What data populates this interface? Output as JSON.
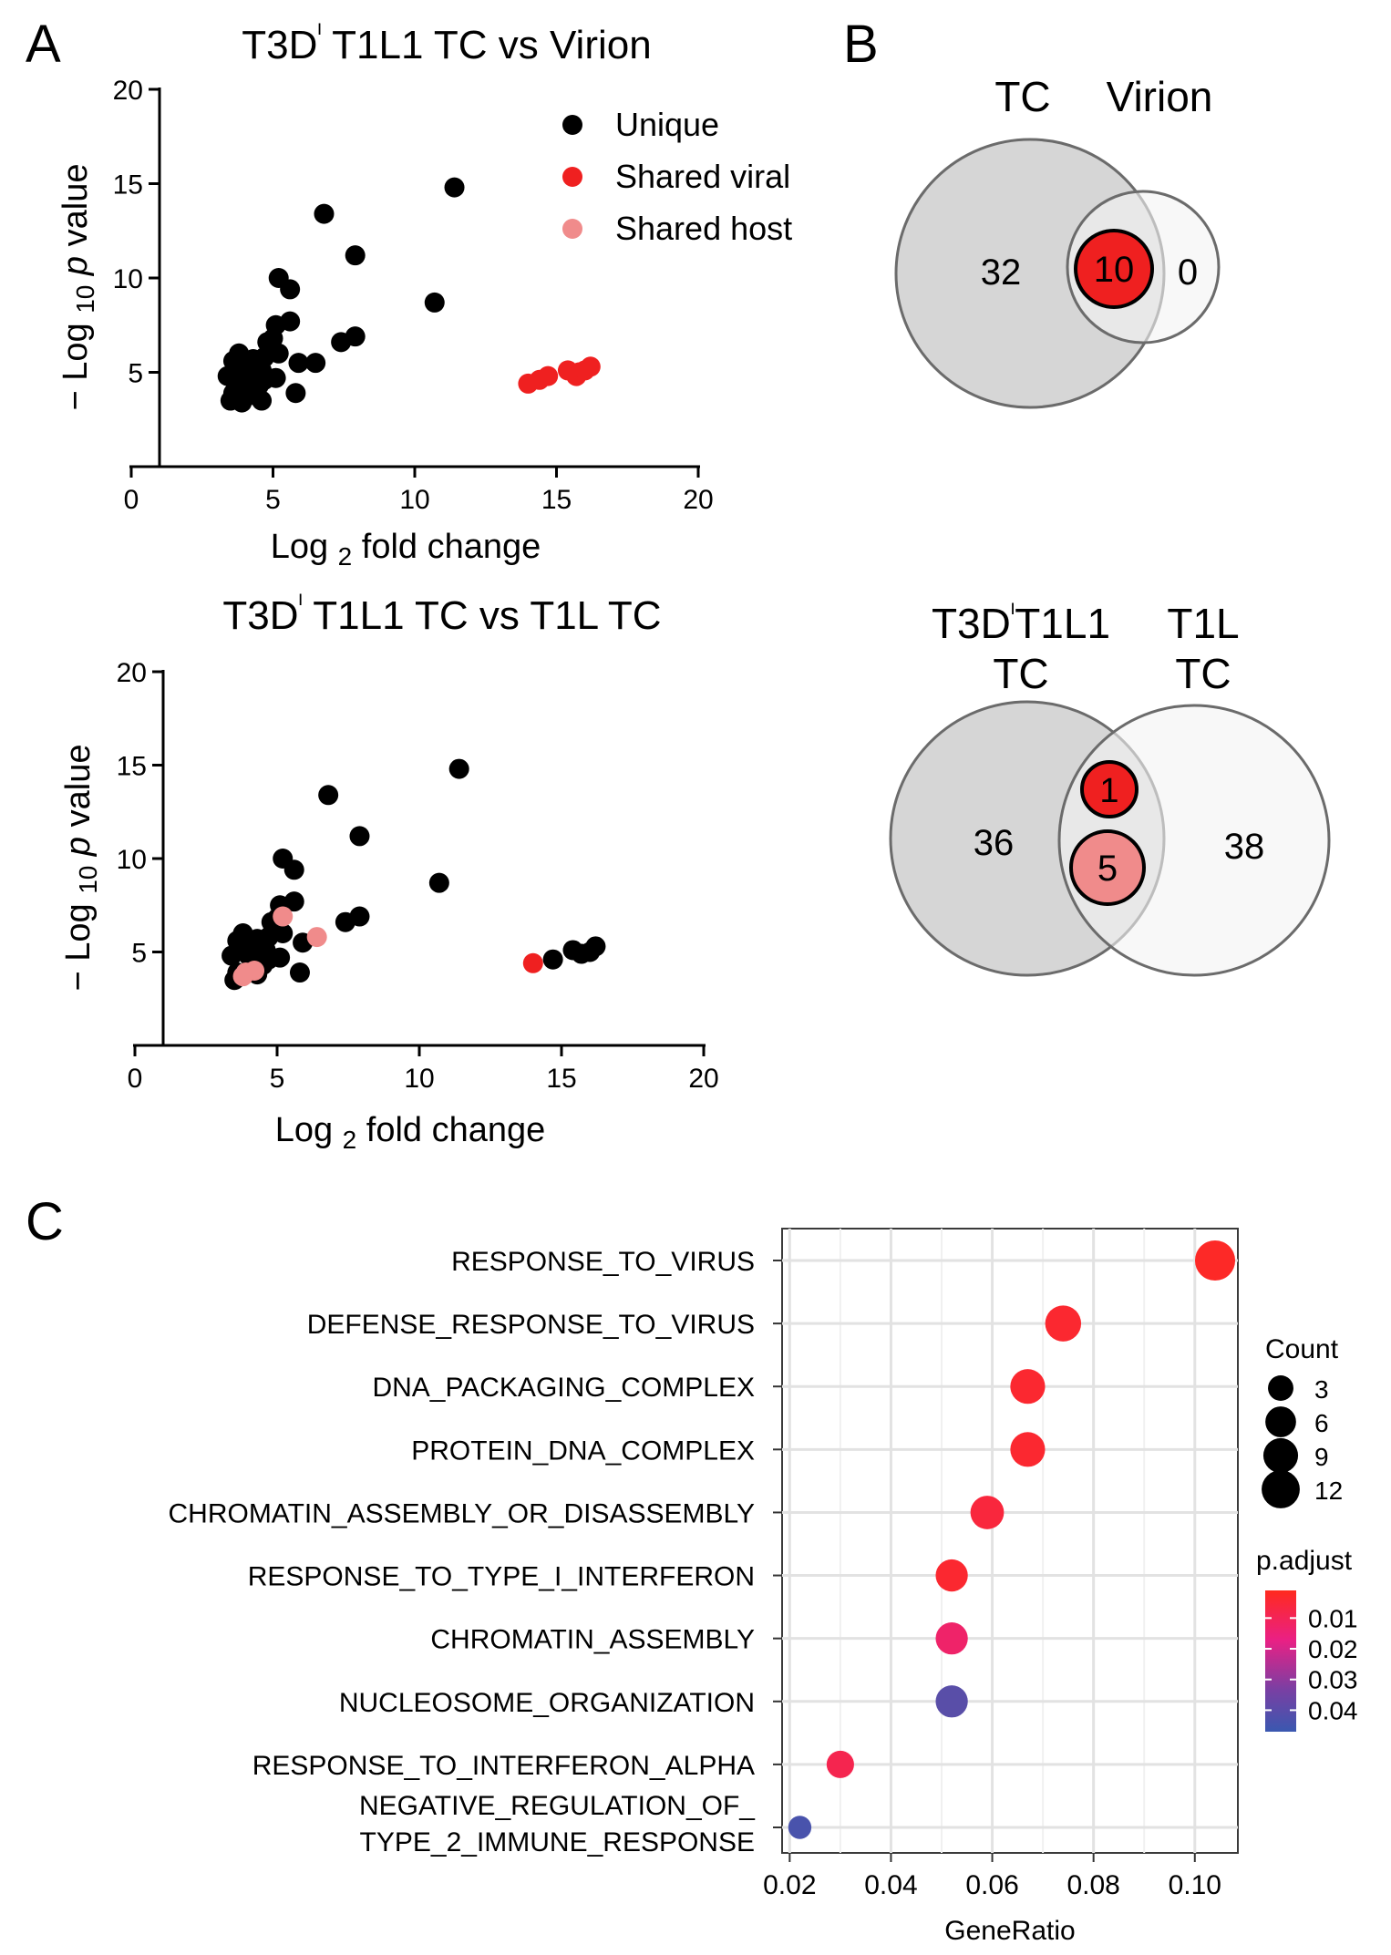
{
  "panels": {
    "A": "A",
    "B": "B",
    "C": "C"
  },
  "colors": {
    "unique": "#000000",
    "shared_viral": "#ef2020",
    "shared_host": "#f08b8b",
    "venn_left": "#d6d6d6",
    "venn_right": "#f3f3f3",
    "dot_high": "#f0203a",
    "dot_mid": "#ea2084",
    "dot_low": "#3f57ad"
  },
  "chart_data": [
    {
      "type": "scatter",
      "id": "volcano1",
      "title": "T3Dᴵ T1L1 TC vs Virion",
      "title_parts": [
        "T3D",
        "ᴵ",
        " T1L1 TC vs Virion"
      ],
      "xlabel": "Log 2 fold change",
      "xlabel_parts": [
        "Log ",
        "2",
        " fold change"
      ],
      "ylabel": "−Log 10 p value",
      "ylabel_parts": [
        "− Log ",
        "10",
        " ",
        "p",
        " value"
      ],
      "xlim": [
        0,
        20
      ],
      "ylim": [
        0,
        20
      ],
      "x_axis_start": 1,
      "xticks": [
        "0",
        "5",
        "10",
        "15",
        "20"
      ],
      "yticks": [
        "5",
        "10",
        "15",
        "20"
      ],
      "legend": {
        "position": "top-right",
        "entries": [
          {
            "label": "Unique",
            "key": "unique"
          },
          {
            "label": "Shared viral",
            "key": "shared_viral"
          },
          {
            "label": "Shared host",
            "key": "shared_host"
          }
        ]
      },
      "series": [
        {
          "name": "Unique",
          "key": "unique",
          "points": [
            [
              11.4,
              14.8
            ],
            [
              6.8,
              13.4
            ],
            [
              7.9,
              11.2
            ],
            [
              5.2,
              10.0
            ],
            [
              10.7,
              8.7
            ],
            [
              5.6,
              9.4
            ],
            [
              5.1,
              7.5
            ],
            [
              5.6,
              7.7
            ],
            [
              5.0,
              6.8
            ],
            [
              4.8,
              6.6
            ],
            [
              7.9,
              6.9
            ],
            [
              7.4,
              6.6
            ],
            [
              3.8,
              6.0
            ],
            [
              4.7,
              5.8
            ],
            [
              5.2,
              6.0
            ],
            [
              3.6,
              5.6
            ],
            [
              4.3,
              5.7
            ],
            [
              5.9,
              5.5
            ],
            [
              6.5,
              5.5
            ],
            [
              3.7,
              5.1
            ],
            [
              4.2,
              5.2
            ],
            [
              4.6,
              5.1
            ],
            [
              3.4,
              4.8
            ],
            [
              4.0,
              4.8
            ],
            [
              4.7,
              4.6
            ],
            [
              5.1,
              4.7
            ],
            [
              3.9,
              4.2
            ],
            [
              4.5,
              4.3
            ],
            [
              3.6,
              3.9
            ],
            [
              4.3,
              3.8
            ],
            [
              5.8,
              3.9
            ],
            [
              3.5,
              3.5
            ],
            [
              3.9,
              3.4
            ],
            [
              4.6,
              3.5
            ]
          ]
        },
        {
          "name": "Shared viral",
          "key": "shared_viral",
          "points": [
            [
              14.0,
              4.4
            ],
            [
              14.4,
              4.6
            ],
            [
              14.7,
              4.8
            ],
            [
              15.4,
              5.1
            ],
            [
              15.8,
              5.0
            ],
            [
              15.7,
              4.8
            ],
            [
              16.2,
              5.3
            ],
            [
              16.0,
              5.1
            ]
          ]
        }
      ]
    },
    {
      "type": "scatter",
      "id": "volcano2",
      "title": "T3Dᴵ T1L1 TC vs T1L TC",
      "title_parts": [
        "T3D",
        "ᴵ",
        " T1L1 TC vs T1L TC"
      ],
      "xlabel": "Log 2 fold change",
      "xlabel_parts": [
        "Log ",
        "2",
        " fold change"
      ],
      "ylabel": "−Log 10 p value",
      "ylabel_parts": [
        "− Log ",
        "10",
        " ",
        "p",
        " value"
      ],
      "xlim": [
        0,
        20
      ],
      "ylim": [
        0,
        20
      ],
      "x_axis_start": 1,
      "xticks": [
        "0",
        "5",
        "10",
        "15",
        "20"
      ],
      "yticks": [
        "5",
        "10",
        "15",
        "20"
      ],
      "series": [
        {
          "name": "Unique",
          "key": "unique",
          "points": [
            [
              11.4,
              14.8
            ],
            [
              6.8,
              13.4
            ],
            [
              7.9,
              11.2
            ],
            [
              5.2,
              10.0
            ],
            [
              10.7,
              8.7
            ],
            [
              5.6,
              9.4
            ],
            [
              5.1,
              7.5
            ],
            [
              5.6,
              7.7
            ],
            [
              5.0,
              6.8
            ],
            [
              4.8,
              6.6
            ],
            [
              7.9,
              6.9
            ],
            [
              7.4,
              6.6
            ],
            [
              3.8,
              6.0
            ],
            [
              4.7,
              5.8
            ],
            [
              5.2,
              6.0
            ],
            [
              3.6,
              5.6
            ],
            [
              4.3,
              5.7
            ],
            [
              5.9,
              5.5
            ],
            [
              3.7,
              5.1
            ],
            [
              4.2,
              5.2
            ],
            [
              4.6,
              5.1
            ],
            [
              3.4,
              4.8
            ],
            [
              4.0,
              4.8
            ],
            [
              4.7,
              4.6
            ],
            [
              5.1,
              4.7
            ],
            [
              4.5,
              4.3
            ],
            [
              3.6,
              3.9
            ],
            [
              4.3,
              3.8
            ],
            [
              5.8,
              3.9
            ],
            [
              3.5,
              3.5
            ],
            [
              14.7,
              4.6
            ],
            [
              15.4,
              5.1
            ],
            [
              15.7,
              4.9
            ],
            [
              16.2,
              5.3
            ],
            [
              16.0,
              5.0
            ]
          ]
        },
        {
          "name": "Shared viral",
          "key": "shared_viral",
          "points": [
            [
              14.0,
              4.4
            ]
          ]
        },
        {
          "name": "Shared host",
          "key": "shared_host",
          "points": [
            [
              5.2,
              6.9
            ],
            [
              6.4,
              5.8
            ],
            [
              3.9,
              3.9
            ],
            [
              4.2,
              4.0
            ],
            [
              3.8,
              3.7
            ]
          ]
        }
      ]
    },
    {
      "type": "venn",
      "id": "venn1",
      "sets": [
        "TC",
        "Virion"
      ],
      "counts": {
        "left_only": "32",
        "shared": "10",
        "right_only": "0"
      }
    },
    {
      "type": "venn",
      "id": "venn2",
      "sets": [
        "T3DᴵT1L1 TC",
        "T1L TC"
      ],
      "set_label_lines": {
        "left": [
          "T3D",
          "ᴵ",
          "T1L1",
          "TC"
        ],
        "right": [
          "T1L",
          "TC"
        ]
      },
      "counts": {
        "left_only": "36",
        "shared_viral": "1",
        "shared_host": "5",
        "right_only": "38"
      }
    },
    {
      "type": "dot",
      "id": "enrichment",
      "xlabel": "GeneRatio",
      "xlim": [
        0.0185,
        0.1085
      ],
      "xticks": [
        0.02,
        0.04,
        0.06,
        0.08,
        0.1
      ],
      "xtick_labels": [
        "0.02",
        "0.04",
        "0.06",
        "0.08",
        "0.10"
      ],
      "grid": true,
      "categories": [
        {
          "label": [
            "RESPONSE_TO_VIRUS"
          ],
          "gene_ratio": 0.104,
          "count": 14,
          "p_adjust": 0.003
        },
        {
          "label": [
            "DEFENSE_RESPONSE_TO_VIRUS"
          ],
          "gene_ratio": 0.074,
          "count": 10,
          "p_adjust": 0.005
        },
        {
          "label": [
            "DNA_PACKAGING_COMPLEX"
          ],
          "gene_ratio": 0.067,
          "count": 9,
          "p_adjust": 0.005
        },
        {
          "label": [
            "PROTEIN_DNA_COMPLEX"
          ],
          "gene_ratio": 0.067,
          "count": 9,
          "p_adjust": 0.005
        },
        {
          "label": [
            "CHROMATIN_ASSEMBLY_OR_DISASSEMBLY"
          ],
          "gene_ratio": 0.059,
          "count": 8,
          "p_adjust": 0.008
        },
        {
          "label": [
            "RESPONSE_TO_TYPE_I_INTERFERON"
          ],
          "gene_ratio": 0.052,
          "count": 7,
          "p_adjust": 0.005
        },
        {
          "label": [
            "CHROMATIN_ASSEMBLY"
          ],
          "gene_ratio": 0.052,
          "count": 7,
          "p_adjust": 0.018
        },
        {
          "label": [
            "NUCLEOSOME_ORGANIZATION"
          ],
          "gene_ratio": 0.052,
          "count": 7,
          "p_adjust": 0.043
        },
        {
          "label": [
            "RESPONSE_TO_INTERFERON_ALPHA"
          ],
          "gene_ratio": 0.03,
          "count": 4,
          "p_adjust": 0.012
        },
        {
          "label": [
            "NEGATIVE_REGULATION_OF_",
            "TYPE_2_IMMUNE_RESPONSE"
          ],
          "gene_ratio": 0.022,
          "count": 2,
          "p_adjust": 0.045
        }
      ],
      "size_legend": {
        "title": "Count",
        "values": [
          3,
          6,
          9,
          12
        ],
        "labels": [
          "3",
          "6",
          "9",
          "12"
        ]
      },
      "color_legend": {
        "title": "p.adjust",
        "range": [
          0.001,
          0.047
        ],
        "ticks": [
          0.01,
          0.02,
          0.03,
          0.04
        ],
        "labels": [
          "0.01",
          "0.02",
          "0.03",
          "0.04"
        ]
      }
    }
  ]
}
